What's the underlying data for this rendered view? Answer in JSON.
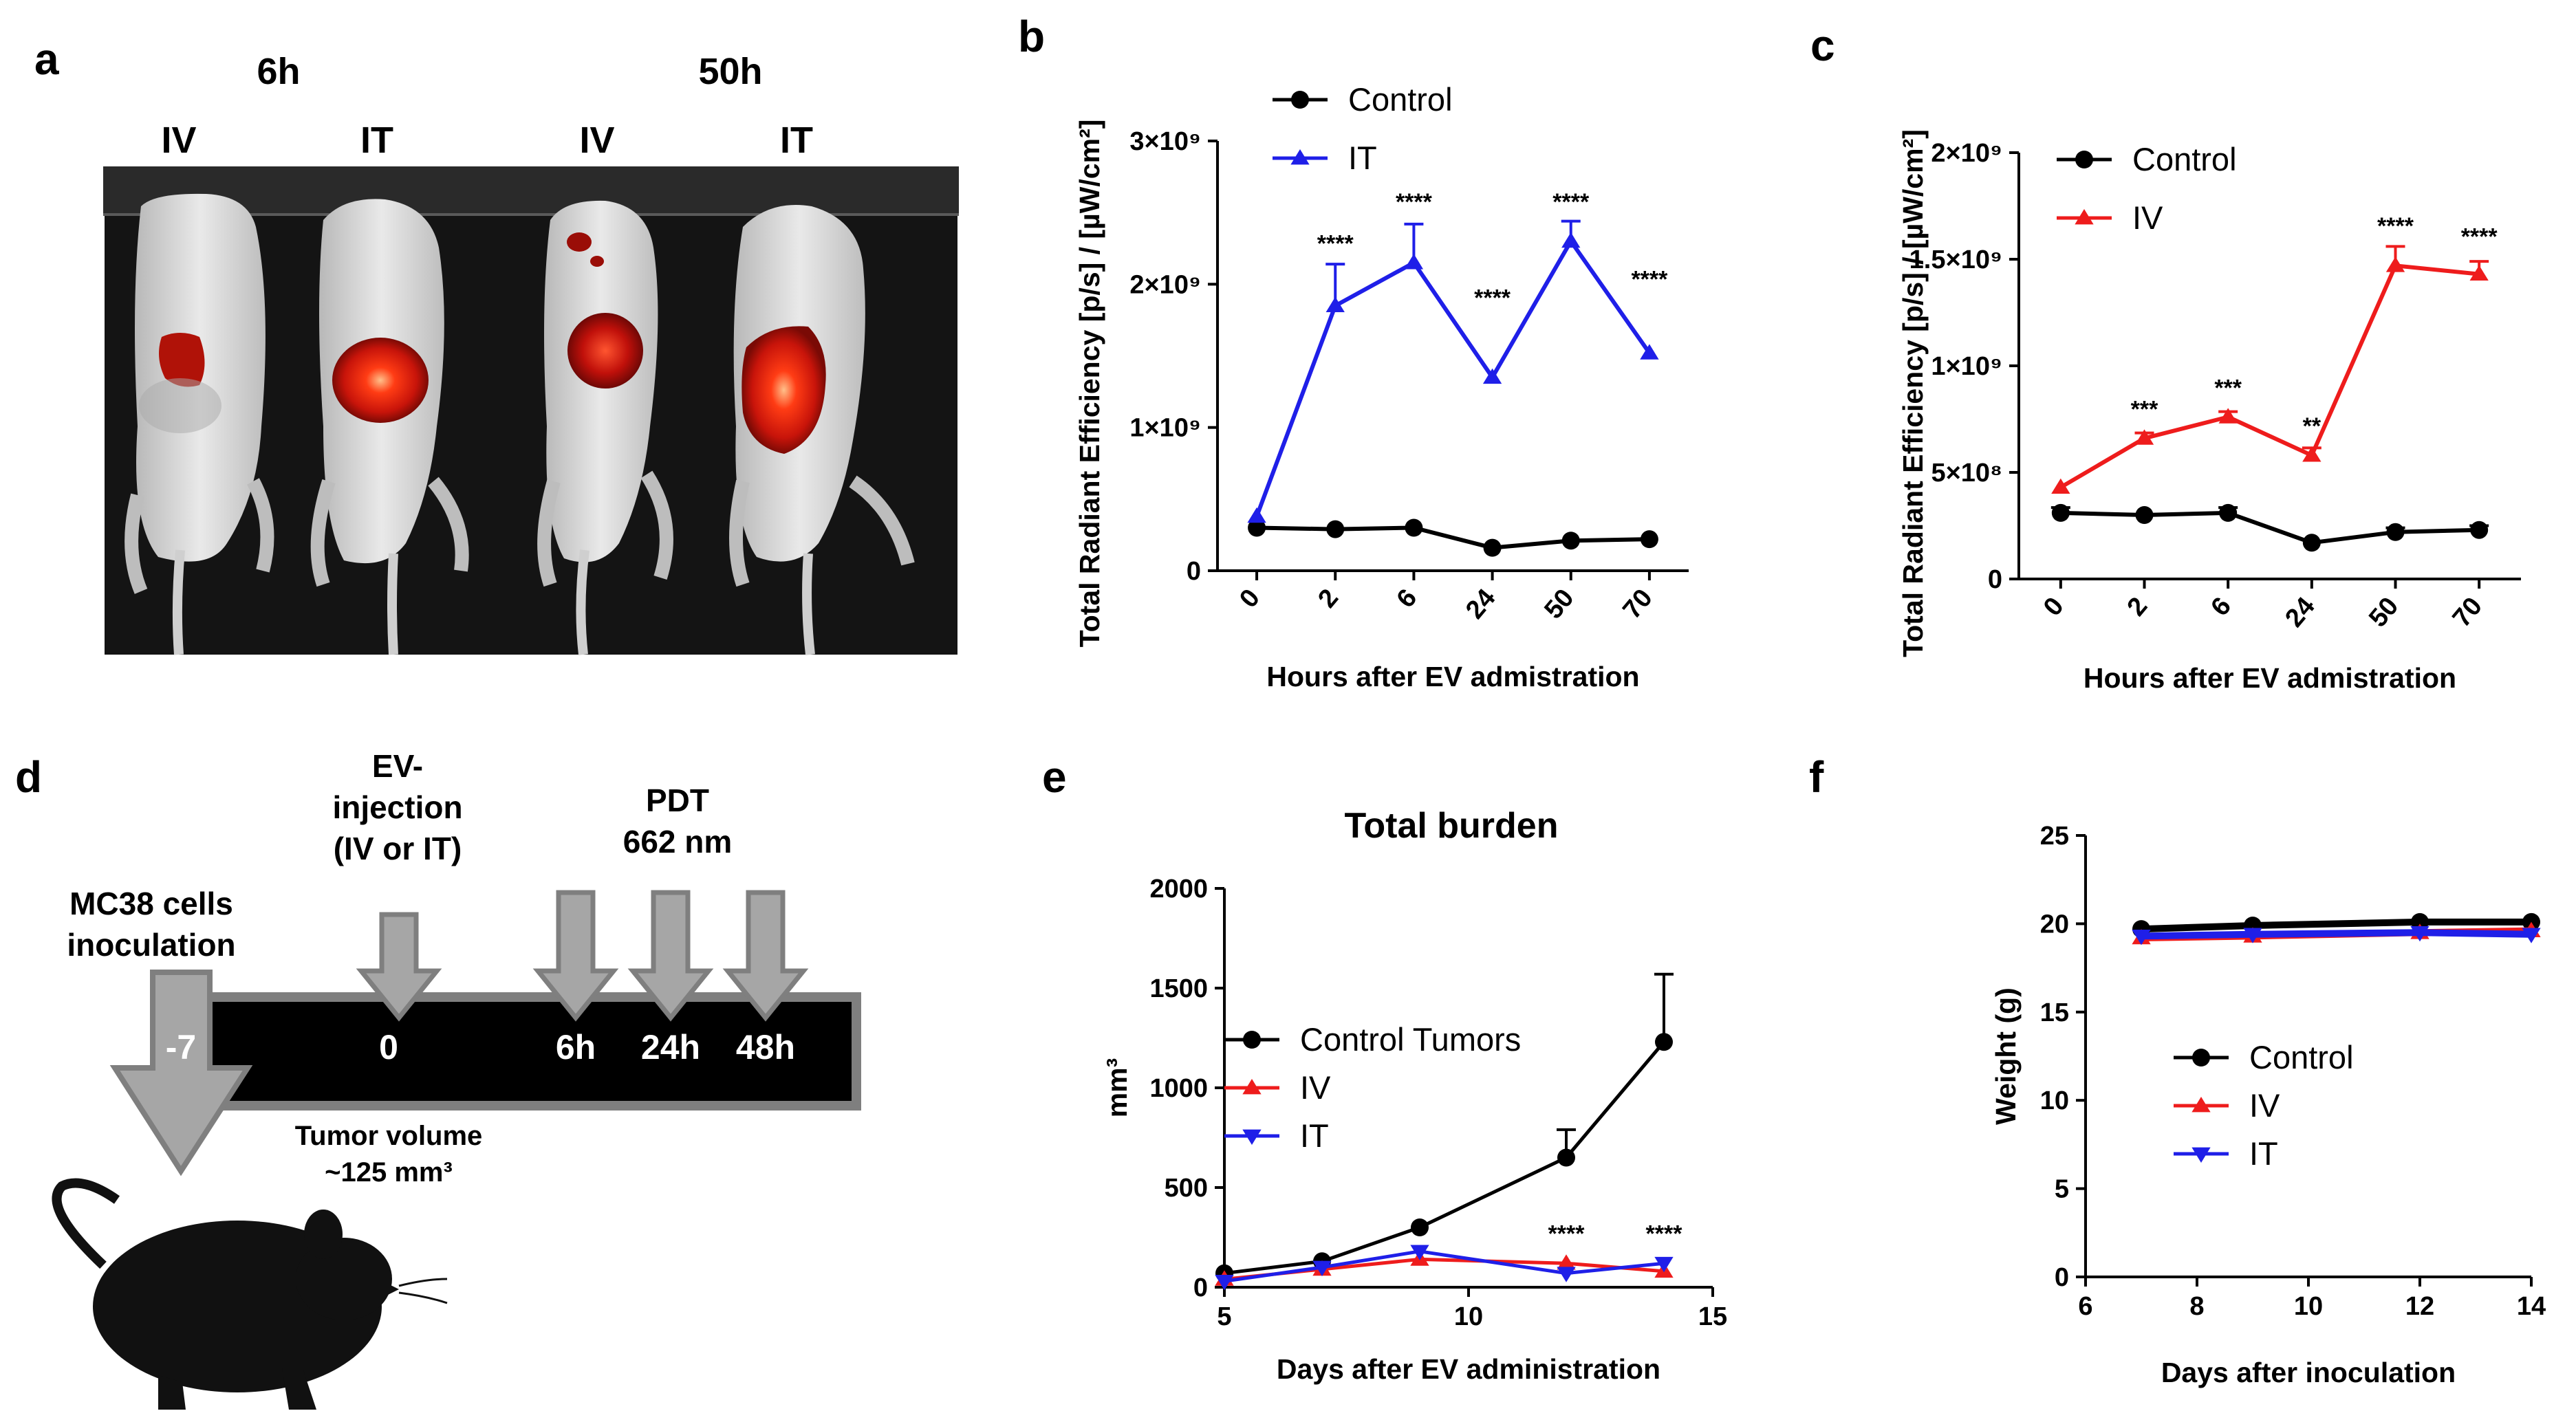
{
  "panels": {
    "a": {
      "label": "a",
      "time_labels": [
        "6h",
        "50h"
      ],
      "group_labels": [
        "IV",
        "IT",
        "IV",
        "IT"
      ]
    },
    "b": {
      "label": "b"
    },
    "c": {
      "label": "c"
    },
    "d": {
      "label": "d",
      "timeline_labels": [
        "-7",
        "0",
        "6h",
        "24h",
        "48h"
      ],
      "annotations": {
        "inoculation": [
          "MC38  cells",
          "inoculation"
        ],
        "injection": [
          "EV-",
          "injection",
          "(IV or IT)"
        ],
        "pdt": [
          "PDT",
          "662 nm"
        ],
        "tumor_volume": [
          "Tumor volume",
          "~125 mm³"
        ]
      }
    },
    "e": {
      "label": "e"
    },
    "f": {
      "label": "f"
    }
  },
  "colors": {
    "control": "#000000",
    "it": "#1f1fe8",
    "iv": "#ee1c1c",
    "arrow": "#a6a6a6",
    "timeline": "#000000"
  },
  "chart_data": [
    {
      "id": "b",
      "type": "line",
      "categories": [
        "0",
        "2",
        "6",
        "24",
        "50",
        "70"
      ],
      "ylabel": "Total Radiant Efficiency [p/s] / [µW/cm²]",
      "xlabel": "Hours after EV admistration",
      "ylim": [
        0,
        3000000000
      ],
      "yticks": [
        {
          "v": 0,
          "label": "0"
        },
        {
          "v": 1000000000,
          "label": "1×10⁹"
        },
        {
          "v": 2000000000,
          "label": "2×10⁹"
        },
        {
          "v": 3000000000,
          "label": "3×10⁹"
        }
      ],
      "legend_position": "top-right",
      "series": [
        {
          "name": "Control",
          "marker": "circle",
          "color": "#000000",
          "values": [
            300000000,
            290000000,
            300000000,
            160000000,
            210000000,
            220000000
          ],
          "errors": [
            0,
            0,
            0,
            0,
            0,
            0
          ]
        },
        {
          "name": "IT",
          "marker": "triangle-up",
          "color": "#1f1fe8",
          "values": [
            380000000,
            1850000000,
            2150000000,
            1350000000,
            2300000000,
            1520000000
          ],
          "errors": [
            0,
            290000000,
            270000000,
            0,
            140000000,
            0
          ]
        }
      ],
      "annotations": [
        {
          "i": 1,
          "text": "****",
          "v": 2230000000
        },
        {
          "i": 2,
          "text": "****",
          "v": 2520000000
        },
        {
          "i": 3,
          "text": "****",
          "v": 1850000000
        },
        {
          "i": 4,
          "text": "****",
          "v": 2520000000
        },
        {
          "i": 5,
          "text": "****",
          "v": 1980000000
        }
      ]
    },
    {
      "id": "c",
      "type": "line",
      "categories": [
        "0",
        "2",
        "6",
        "24",
        "50",
        "70"
      ],
      "ylabel": "Total Radiant Efficiency [p/s] / [µW/cm²]",
      "xlabel": "Hours after EV admistration",
      "ylim": [
        0,
        2000000000
      ],
      "yticks": [
        {
          "v": 0,
          "label": "0"
        },
        {
          "v": 500000000,
          "label": "5×10⁸"
        },
        {
          "v": 1000000000,
          "label": "1×10⁹"
        },
        {
          "v": 1500000000,
          "label": "1.5×10⁹"
        },
        {
          "v": 2000000000,
          "label": "2×10⁹"
        }
      ],
      "legend_position": "top-left",
      "series": [
        {
          "name": "Control",
          "marker": "circle",
          "color": "#000000",
          "values": [
            310000000,
            300000000,
            310000000,
            170000000,
            220000000,
            230000000
          ],
          "errors": [
            25000000,
            0,
            25000000,
            0,
            20000000,
            20000000
          ]
        },
        {
          "name": "IV",
          "marker": "triangle-up",
          "color": "#ee1c1c",
          "values": [
            430000000,
            660000000,
            760000000,
            580000000,
            1470000000,
            1430000000
          ],
          "errors": [
            0,
            25000000,
            25000000,
            35000000,
            90000000,
            60000000
          ]
        }
      ],
      "annotations": [
        {
          "i": 1,
          "text": "***",
          "v": 760000000
        },
        {
          "i": 2,
          "text": "***",
          "v": 860000000
        },
        {
          "i": 3,
          "text": "**",
          "v": 680000000
        },
        {
          "i": 4,
          "text": "****",
          "v": 1620000000
        },
        {
          "i": 5,
          "text": "****",
          "v": 1570000000
        }
      ]
    },
    {
      "id": "e",
      "type": "line",
      "title": "Total burden",
      "xlabel": "Days after EV administration",
      "ylabel": "mm³",
      "xlim": [
        5,
        15
      ],
      "ylim": [
        0,
        2000
      ],
      "xticks": [
        5,
        10,
        15
      ],
      "yticks": [
        0,
        500,
        1000,
        1500,
        2000
      ],
      "legend_position": "center-left",
      "series": [
        {
          "name": "Control Tumors",
          "marker": "circle",
          "color": "#000000",
          "x": [
            5,
            7,
            9,
            12,
            14
          ],
          "values": [
            70,
            130,
            300,
            650,
            1230
          ],
          "errors": [
            0,
            0,
            0,
            140,
            340
          ]
        },
        {
          "name": "IV",
          "marker": "triangle-up",
          "color": "#ee1c1c",
          "x": [
            5,
            7,
            9,
            12,
            14
          ],
          "values": [
            40,
            90,
            140,
            120,
            80
          ],
          "errors": [
            0,
            0,
            0,
            0,
            0
          ]
        },
        {
          "name": "IT",
          "marker": "triangle-down",
          "color": "#1f1fe8",
          "x": [
            5,
            7,
            9,
            12,
            14
          ],
          "values": [
            30,
            100,
            180,
            70,
            120
          ],
          "errors": [
            0,
            0,
            0,
            0,
            0
          ]
        }
      ],
      "annotations": [
        {
          "x": 12,
          "text": "****",
          "v": 230
        },
        {
          "x": 14,
          "text": "****",
          "v": 230
        }
      ]
    },
    {
      "id": "f",
      "type": "line",
      "xlabel": "Days after inoculation",
      "ylabel": "Weight  (g)",
      "xlim": [
        6,
        14
      ],
      "ylim": [
        0,
        25
      ],
      "xticks": [
        6,
        8,
        10,
        12,
        14
      ],
      "yticks": [
        0,
        5,
        10,
        15,
        20,
        25
      ],
      "legend_position": "center",
      "series": [
        {
          "name": "Control",
          "marker": "circle",
          "color": "#000000",
          "x": [
            7,
            9,
            12,
            14
          ],
          "values": [
            19.7,
            19.9,
            20.1,
            20.1
          ],
          "errors": [
            0,
            0,
            0,
            0
          ]
        },
        {
          "name": "IV",
          "marker": "triangle-up",
          "color": "#ee1c1c",
          "x": [
            7,
            9,
            12,
            14
          ],
          "values": [
            19.2,
            19.3,
            19.5,
            19.6
          ],
          "errors": [
            0,
            0,
            0,
            0
          ]
        },
        {
          "name": "IT",
          "marker": "triangle-down",
          "color": "#1f1fe8",
          "x": [
            7,
            9,
            12,
            14
          ],
          "values": [
            19.3,
            19.4,
            19.5,
            19.4
          ],
          "errors": [
            0,
            0,
            0,
            0
          ]
        }
      ]
    }
  ]
}
